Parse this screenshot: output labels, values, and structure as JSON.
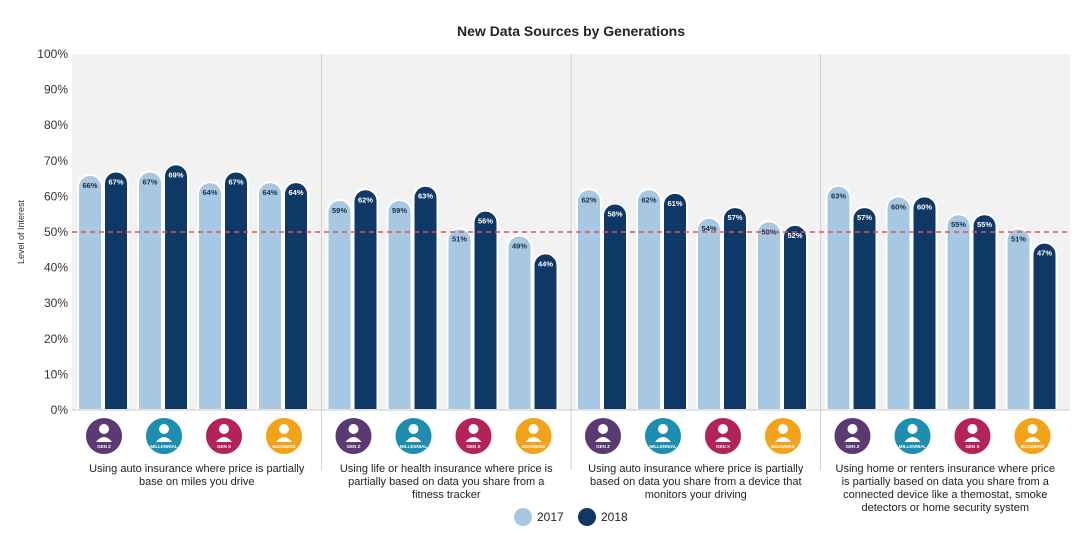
{
  "chart_data": {
    "type": "bar",
    "title": "New Data Sources by Generations",
    "ylabel": "Level of Interest",
    "xlabel": "",
    "ylim": [
      0,
      100
    ],
    "y_ticks": [
      "0%",
      "10%",
      "20%",
      "30%",
      "40%",
      "50%",
      "60%",
      "70%",
      "80%",
      "90%",
      "100%"
    ],
    "reference_line": 50,
    "grid": false,
    "legend_position": "bottom-center",
    "series": [
      {
        "name": "2017",
        "color": "#a6c8e2",
        "values": [
          66,
          67,
          64,
          64,
          59,
          59,
          51,
          49,
          62,
          62,
          54,
          53,
          63,
          60,
          55,
          51
        ]
      },
      {
        "name": "2018",
        "color": "#0e3865",
        "values": [
          67,
          69,
          67,
          64,
          62,
          63,
          56,
          44,
          58,
          61,
          57,
          52,
          57,
          60,
          55,
          47
        ]
      }
    ],
    "generations": [
      {
        "label": "GEN Z",
        "color": "#5b3a74",
        "icon": "person-icon"
      },
      {
        "label": "MILLENNIAL",
        "color": "#1d8db0",
        "icon": "person-icon"
      },
      {
        "label": "GEN X",
        "color": "#b32359",
        "icon": "person-icon"
      },
      {
        "label": "BOOMERS",
        "color": "#f4a218",
        "icon": "person-icon"
      }
    ],
    "groups": [
      {
        "lines": [
          "Using auto insurance where price is partially",
          "base on miles you drive"
        ]
      },
      {
        "lines": [
          "Using life or health insurance where price is",
          "partially based on data you share from a",
          "fitness tracker"
        ]
      },
      {
        "lines": [
          "Using auto insurance where price is partially",
          "based on data you share from a device that",
          "monitors your driving"
        ]
      },
      {
        "lines": [
          "Using home or renters insurance where price",
          "is partially based on data you share from a",
          "connected device like a themostat, smoke",
          "detectors or home security system"
        ]
      }
    ]
  }
}
